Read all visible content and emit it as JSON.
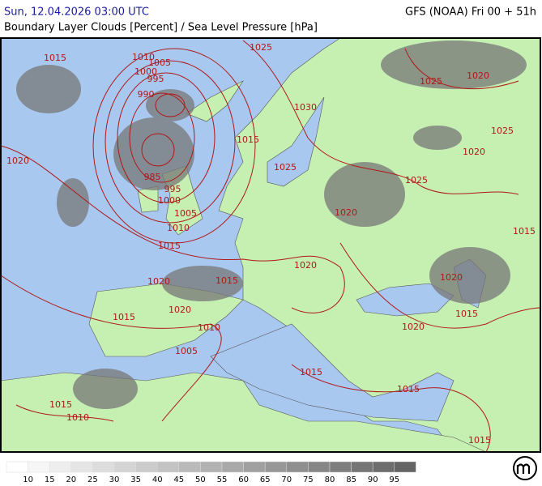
{
  "header": {
    "datetime": "Sun, 12.04.2026 03:00 UTC",
    "model": "GFS (NOAA) Fri 00 + 51h",
    "subtitle": "Boundary Layer Clouds [Percent] / Sea Level Pressure [hPa]"
  },
  "isobar_labels": [
    "1015",
    "1010",
    "1005",
    "1000",
    "995",
    "990",
    "985",
    "995",
    "1000",
    "1005",
    "1010",
    "1015",
    "1020",
    "1020",
    "1020",
    "1015",
    "1015",
    "1010",
    "1005",
    "1015",
    "1010",
    "1025",
    "1030",
    "1015",
    "1025",
    "1025",
    "1020",
    "1025",
    "1020",
    "1025",
    "1020",
    "1020",
    "1015",
    "1020",
    "1015",
    "1020",
    "1015",
    "1015",
    "1015"
  ],
  "legend": {
    "labels": [
      10,
      15,
      20,
      25,
      30,
      35,
      40,
      45,
      50,
      55,
      60,
      65,
      70,
      75,
      80,
      85,
      90,
      95
    ]
  }
}
